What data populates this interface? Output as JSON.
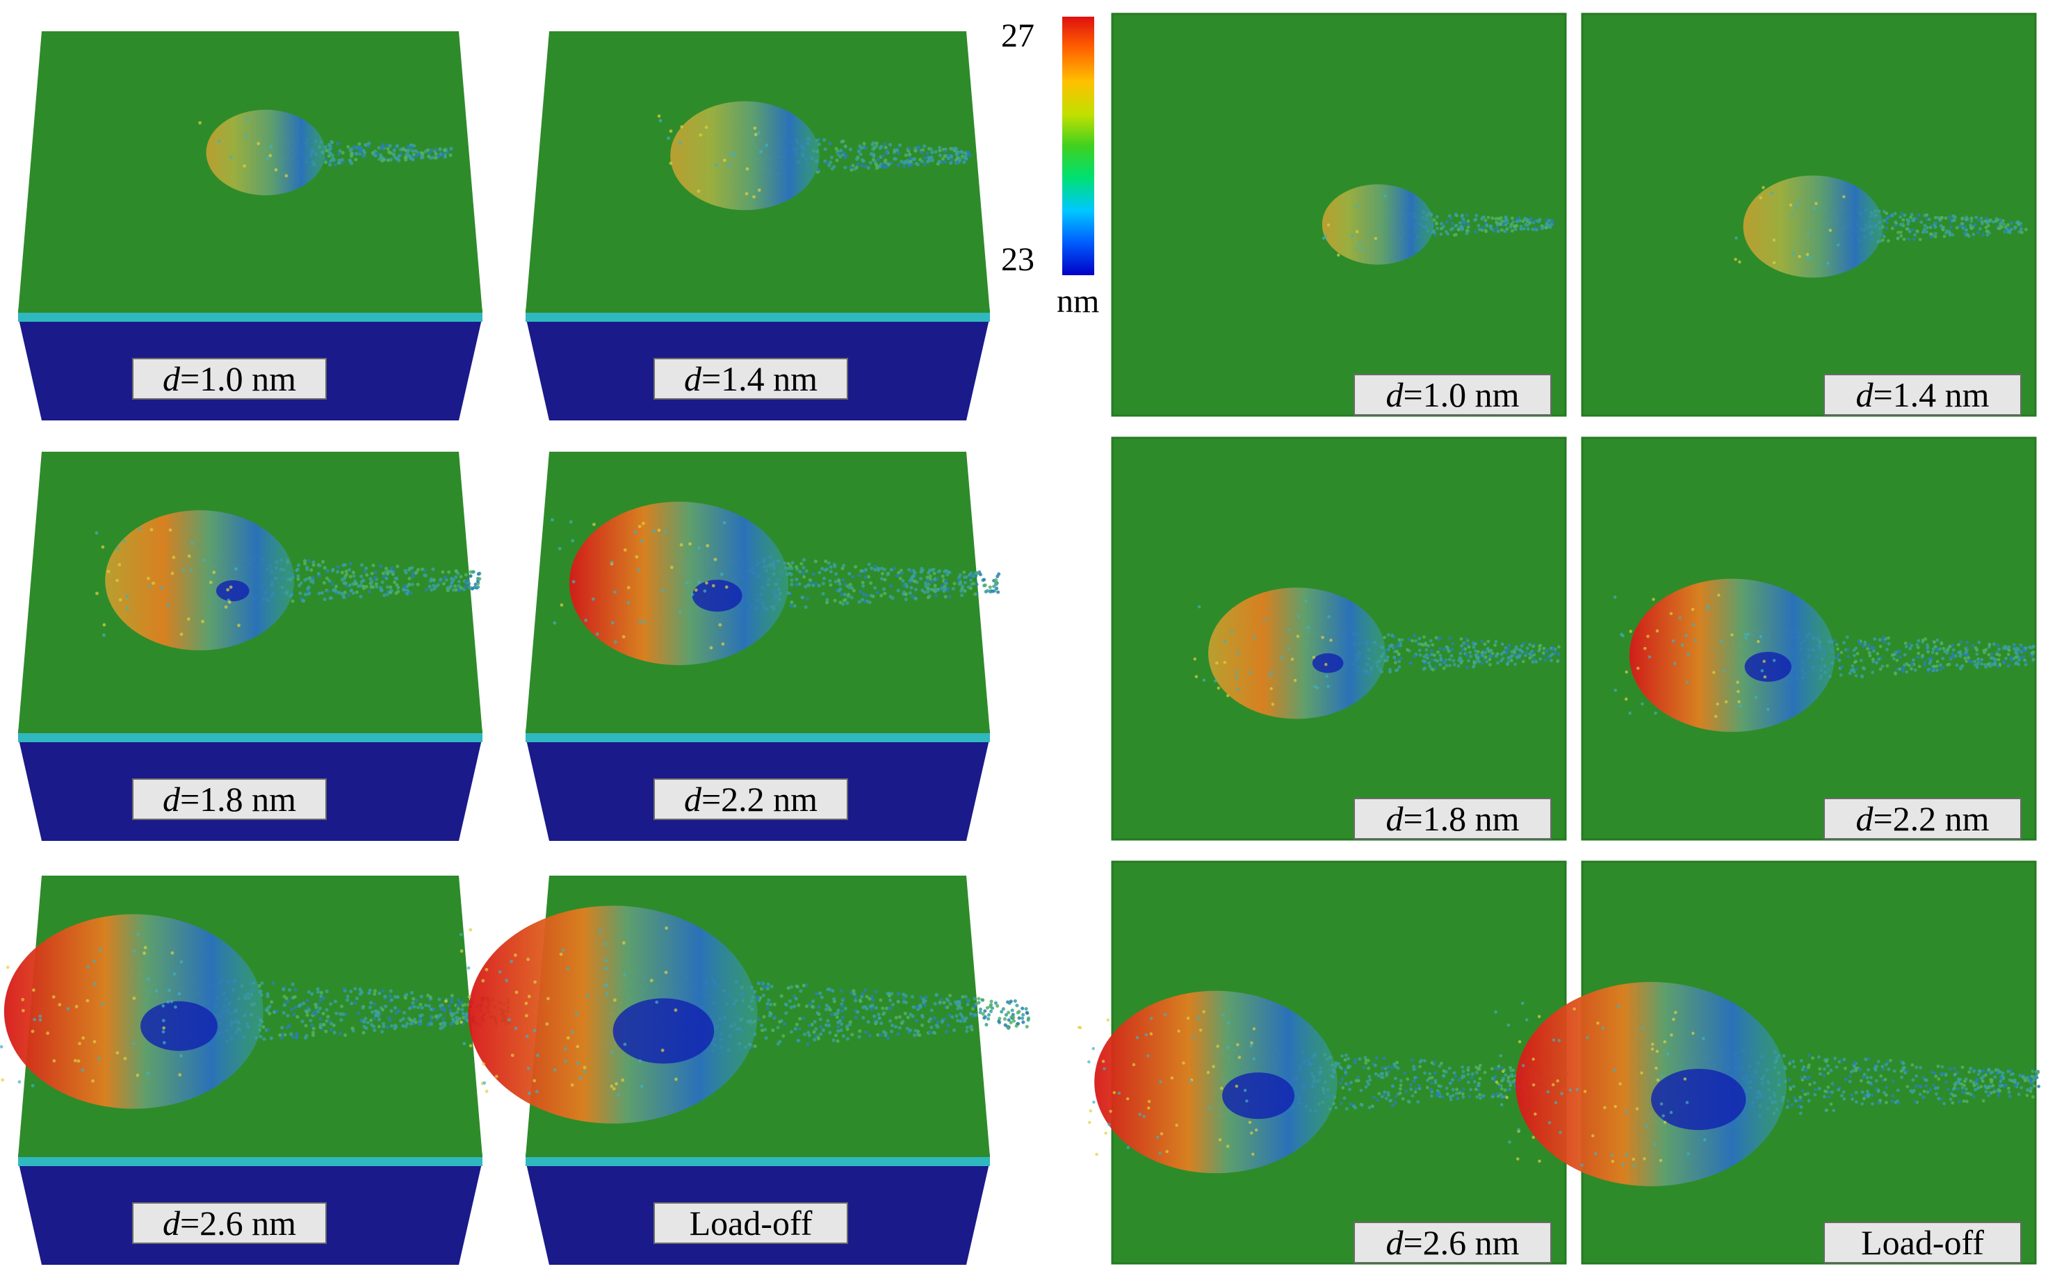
{
  "colorbar": {
    "max_label": "27",
    "min_label": "23",
    "unit": "nm",
    "min_value": 23,
    "max_value": 27,
    "colormap": [
      "#0000c8",
      "#0060ff",
      "#00c8ff",
      "#00e070",
      "#40d020",
      "#c0e000",
      "#ffc000",
      "#ff6000",
      "#e01010"
    ]
  },
  "colors": {
    "surface_green": "#2e8b2a",
    "surface_green_dark": "#257a22",
    "substrate_blue": "#1a1a8a",
    "rim_cyan": "#30b8c0",
    "label_bg": "#e6e6e6"
  },
  "label_var": "d",
  "panels_3d": [
    {
      "text": "=1.0 nm",
      "var": "d",
      "intensity": 0.15
    },
    {
      "text": "=1.4 nm",
      "var": "d",
      "intensity": 0.3
    },
    {
      "text": "=1.8 nm",
      "var": "d",
      "intensity": 0.5
    },
    {
      "text": "=2.2 nm",
      "var": "d",
      "intensity": 0.65
    },
    {
      "text": "=2.6 nm",
      "var": "d",
      "intensity": 0.85
    },
    {
      "text": "Load-off",
      "var": "",
      "intensity": 1.0
    }
  ],
  "panels_top": [
    {
      "text": "=1.0 nm",
      "var": "d",
      "intensity": 0.15
    },
    {
      "text": "=1.4 nm",
      "var": "d",
      "intensity": 0.3
    },
    {
      "text": "=1.8 nm",
      "var": "d",
      "intensity": 0.5
    },
    {
      "text": "=2.2 nm",
      "var": "d",
      "intensity": 0.65
    },
    {
      "text": "=2.6 nm",
      "var": "d",
      "intensity": 0.85
    },
    {
      "text": "Load-off",
      "var": "",
      "intensity": 1.0
    }
  ]
}
